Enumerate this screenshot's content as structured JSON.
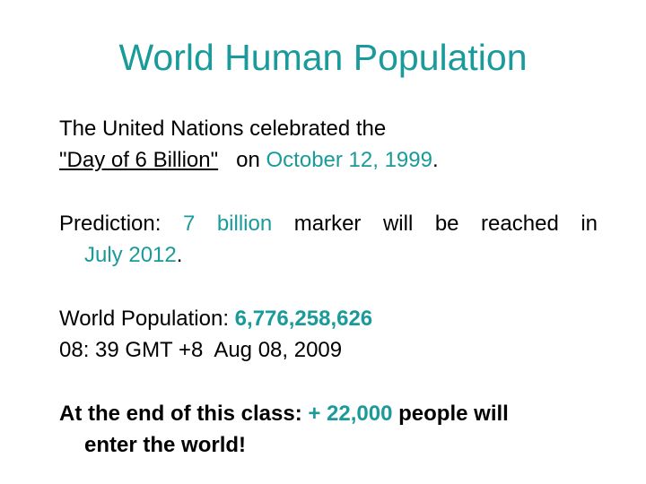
{
  "slide": {
    "title": "World Human Population",
    "para1": {
      "line1": "The United Nations celebrated the",
      "link_text": "\"Day of 6 Billion\"",
      "on": "on",
      "date": "October 12, 1999",
      "period": "."
    },
    "para2": {
      "prefix": "Prediction:",
      "num": "7 billion",
      "rest": "marker will be reached in",
      "line2_date": "July 2012",
      "period": "."
    },
    "para3": {
      "label": "World Population:",
      "value": "6,776,258,626",
      "timestamp": "08: 39 GMT +8  Aug 08, 2009"
    },
    "para4": {
      "prefix": "At the end of this class:",
      "plus": "+ 22,000",
      "rest": "people will",
      "line2": "enter the world!"
    }
  },
  "colors": {
    "accent": "#1a9a9a",
    "text": "#000000",
    "background": "#ffffff"
  }
}
